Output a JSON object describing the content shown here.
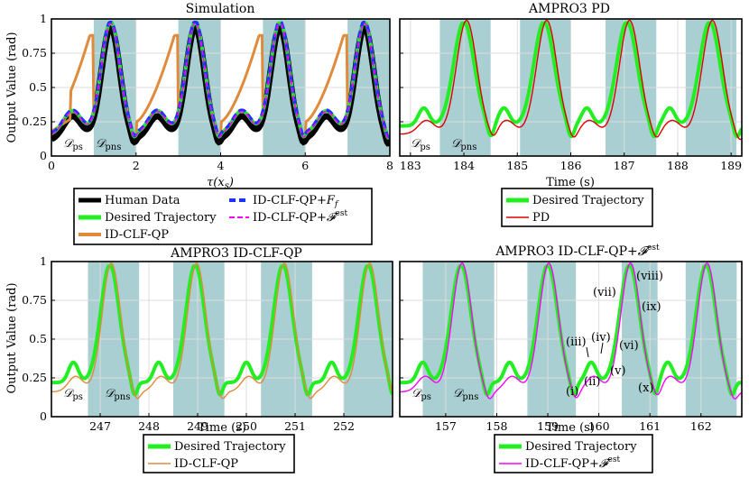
{
  "colors": {
    "human": "#000000",
    "desired": "#22ee22",
    "id_clf_qp": "#e08a3c",
    "ff": "#1a33ff",
    "fest": "#ff00ff",
    "pd": "#dd0000",
    "shade": "#a9cfd2",
    "grid": "#dcdcdc"
  },
  "chart_data": [
    {
      "type": "line",
      "title": "Simulation",
      "xlabel": "τ(x_s)",
      "ylabel": "Output Value (rad)",
      "xlim": [
        0,
        8
      ],
      "ylim": [
        0,
        1
      ],
      "xticks": [
        "0",
        "2",
        "4",
        "6",
        "8"
      ],
      "yticks": [
        "0",
        "0.25",
        "0.5",
        "0.75",
        "1"
      ],
      "domain_labels": [
        "D_ps",
        "D_pns"
      ],
      "shaded_x_ranges": [
        [
          1.0,
          2.0
        ],
        [
          3.0,
          4.0
        ],
        [
          5.0,
          6.0
        ],
        [
          7.0,
          8.0
        ]
      ],
      "peak_value": 0.98,
      "series": [
        "Human Data",
        "Desired Trajectory",
        "ID-CLF-QP",
        "ID-CLF-QP+F_f",
        "ID-CLF-QP+F^est"
      ],
      "legend": {
        "col1": [
          "Human Data",
          "Desired Trajectory",
          "ID-CLF-QP"
        ],
        "col2_prefix": "ID-CLF-QP+",
        "col2": [
          {
            "sym": "F",
            "sub": "f"
          },
          {
            "sym": "F",
            "sup": "est"
          }
        ]
      }
    },
    {
      "type": "line",
      "title": "AMPRO3 PD",
      "xlabel": "Time (s)",
      "xlim": [
        182.8,
        189.2
      ],
      "ylim": [
        0,
        1
      ],
      "xticks": [
        "183",
        "184",
        "185",
        "186",
        "187",
        "188",
        "189"
      ],
      "domain_labels": [
        "D_ps",
        "D_pns"
      ],
      "shaded_x_ranges": [
        [
          183.55,
          184.5
        ],
        [
          185.05,
          186.0
        ],
        [
          186.65,
          187.6
        ],
        [
          188.15,
          189.1
        ]
      ],
      "peak_times": [
        184.0,
        185.5,
        187.05,
        188.6
      ],
      "series": [
        "Desired Trajectory",
        "PD"
      ],
      "legend": [
        "Desired Trajectory",
        "PD"
      ]
    },
    {
      "type": "line",
      "title": "AMPRO3 ID-CLF-QP",
      "xlabel": "Time (s)",
      "ylabel": "Output Value (rad)",
      "xlim": [
        246.0,
        253.0
      ],
      "ylim": [
        0,
        1
      ],
      "xticks": [
        "247",
        "248",
        "249",
        "250",
        "251",
        "252"
      ],
      "yticks": [
        "0",
        "0.25",
        "0.5",
        "0.75",
        "1"
      ],
      "domain_labels": [
        "D_ps",
        "D_pns"
      ],
      "shaded_x_ranges": [
        [
          246.75,
          247.8
        ],
        [
          248.5,
          249.55
        ],
        [
          250.3,
          251.35
        ],
        [
          252.0,
          253.0
        ]
      ],
      "peak_times": [
        247.2,
        248.95,
        250.75,
        252.5
      ],
      "series": [
        "Desired Trajectory",
        "ID-CLF-QP"
      ],
      "legend": [
        "Desired Trajectory",
        "ID-CLF-QP"
      ]
    },
    {
      "type": "line",
      "title": "AMPRO3 ID-CLF-QP+",
      "title_sup": "est",
      "xlabel": "Time (s)",
      "xlim": [
        156.1,
        162.8
      ],
      "ylim": [
        0,
        1
      ],
      "xticks": [
        "157",
        "158",
        "159",
        "160",
        "161",
        "162"
      ],
      "domain_labels": [
        "D_ps",
        "D_pns"
      ],
      "shaded_x_ranges": [
        [
          156.55,
          157.95
        ],
        [
          158.6,
          159.55
        ],
        [
          160.45,
          161.15
        ],
        [
          161.7,
          162.7
        ]
      ],
      "peak_times": [
        157.3,
        159.0,
        160.6,
        162.1
      ],
      "annotations": [
        "(i)",
        "(ii)",
        "(iii)",
        "(iv)",
        "(v)",
        "(vi)",
        "(vii)",
        "(viii)",
        "(ix)",
        "(x)"
      ],
      "series": [
        "Desired Trajectory",
        "ID-CLF-QP+F^est"
      ],
      "legend_text": "ID-CLF-QP+",
      "legend": [
        "Desired Trajectory",
        "ID-CLF-QP+F^est"
      ]
    }
  ]
}
